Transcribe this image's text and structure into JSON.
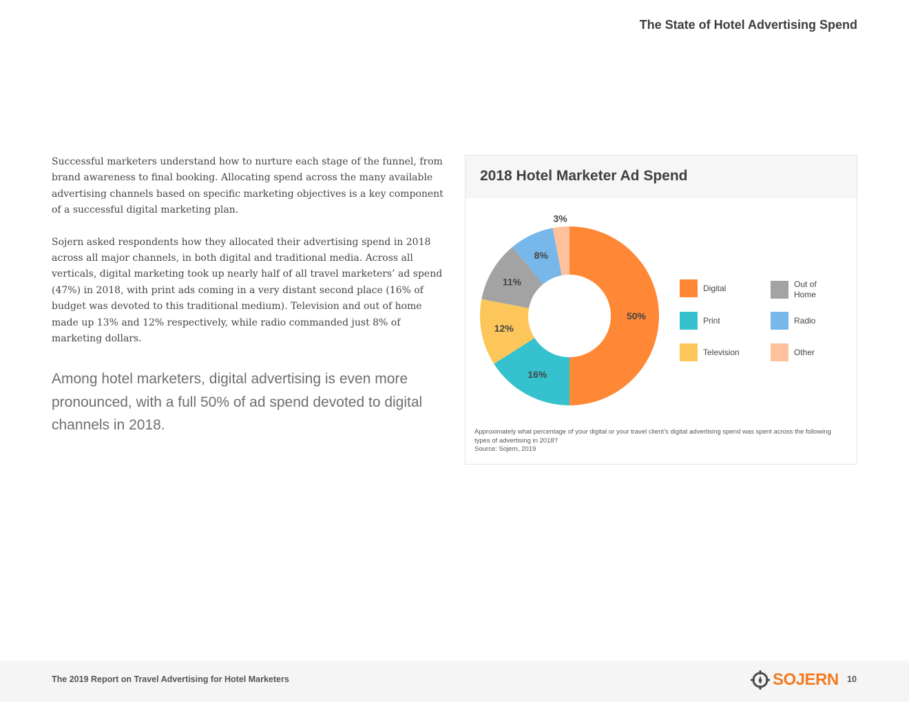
{
  "header": {
    "section_title": "The State of Hotel Advertising Spend"
  },
  "body": {
    "paragraph_1": "Successful marketers understand how to nurture each stage of the funnel, from brand awareness to final booking. Allocating spend across the many available advertising channels based on specific marketing objectives is a key component of a successful digital marketing plan.",
    "paragraph_2": "Sojern asked respondents how they allocated their advertising spend in 2018 across all major channels, in both digital and traditional media. Across all verticals, digital marketing took up nearly half of all travel marketers’ ad spend (47%) in 2018, with print ads coming in a very distant second place (16% of budget was devoted to this traditional medium). Television and out of home made up 13% and 12% respectively, while radio commanded just 8% of marketing dollars.",
    "pull_quote": "Among hotel marketers, digital advertising is even more pronounced, with a full 50% of ad spend devoted to digital channels in 2018."
  },
  "chart_data": {
    "type": "pie",
    "title": "2018 Hotel Marketer Ad Spend",
    "unit": "%",
    "categories": [
      "Digital",
      "Print",
      "Television",
      "Out of Home",
      "Radio",
      "Other"
    ],
    "values": [
      50,
      16,
      12,
      11,
      8,
      3
    ],
    "data_labels": [
      "50%",
      "16%",
      "12%",
      "11%",
      "8%",
      "3%"
    ],
    "colors": [
      "#fe8836",
      "#35c1cd",
      "#fcc65a",
      "#a3a3a3",
      "#77b7ea",
      "#fec19c"
    ],
    "legend_position": "right",
    "legend_order": [
      "Digital",
      "Out of Home",
      "Print",
      "Radio",
      "Television",
      "Other"
    ],
    "note": "Approximately what percentage of your digital or your travel client’s digital advertising spend was spent across the following types of advertising in 2018?",
    "source": "Source: Sojern, 2019"
  },
  "footer": {
    "report_title": "The 2019 Report on Travel Advertising for Hotel Marketers",
    "logo_text": "SOJERN",
    "page_number": "10"
  },
  "colors": {
    "brand": "#f47b20",
    "footer_bg": "#f5f5f5"
  }
}
